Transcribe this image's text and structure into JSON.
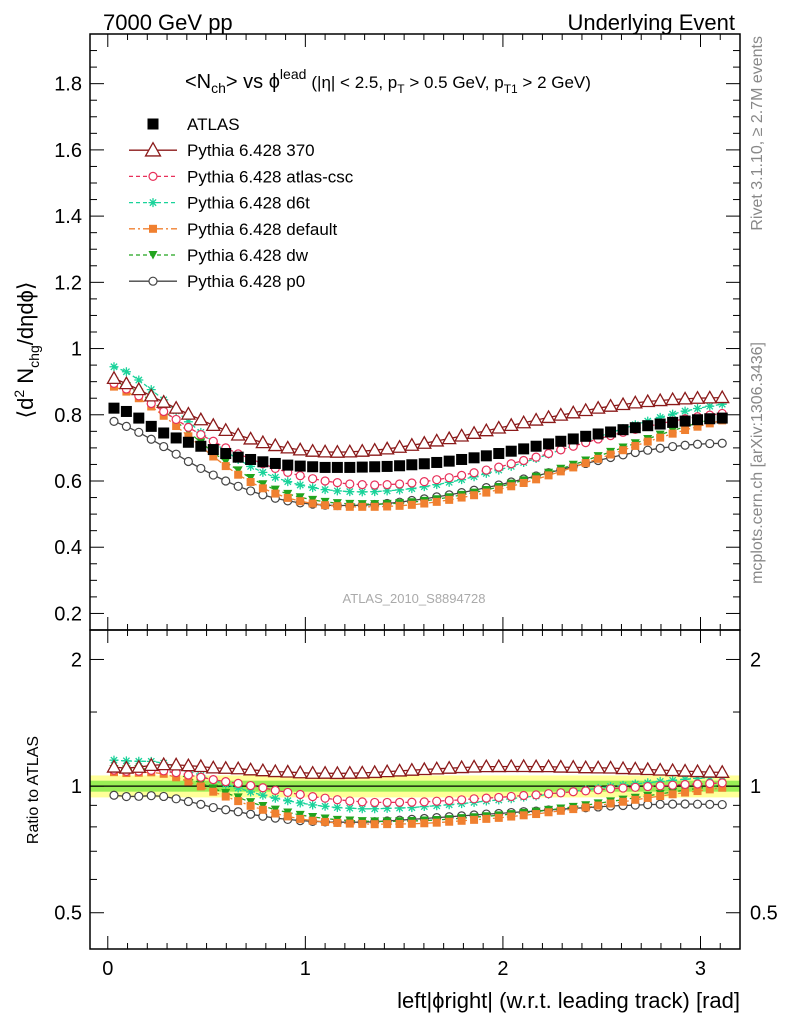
{
  "header": {
    "left": "7000 GeV pp",
    "right": "Underlying Event"
  },
  "plot_title": {
    "main": "<N",
    "main_sub": "ch",
    "vs": "> vs ",
    "phi": "ϕ",
    "phi_sup": "lead",
    "cuts_a": "(|η| < 2.5, p",
    "cuts_sub_t": "T",
    "cuts_b": " > 0.5 GeV, p",
    "cuts_sub_t1": "T1",
    "cuts_c": " > 2 GeV)"
  },
  "ylabel_upper": {
    "a": "⟨d",
    "sup2": "2",
    "b": " N",
    "sub": "chg",
    "c": "/dηdϕ⟩"
  },
  "ylabel_lower": "Ratio to ATLAS",
  "xlabel": "left|ϕright| (w.r.t. leading track) [rad]",
  "watermark": "ATLAS_2010_S8894728",
  "side_text_top": "Rivet 3.1.10, ≥ 2.7M events",
  "side_text_bottom": "mcplots.cern.ch [arXiv:1306.3436]",
  "colors": {
    "atlas": "#000000",
    "p370": "#8b1a1a",
    "atlas_csc": "#e8305a",
    "d6t": "#19d39a",
    "default": "#f08030",
    "dw": "#22a41e",
    "p0": "#444444",
    "band_green": "#99ee55",
    "band_yellow": "#ffff99"
  },
  "chart_data": {
    "type": "scatter",
    "x": [
      0.0314,
      0.0942,
      0.157,
      0.22,
      0.283,
      0.346,
      0.408,
      0.471,
      0.534,
      0.597,
      0.66,
      0.723,
      0.785,
      0.848,
      0.911,
      0.974,
      1.037,
      1.1,
      1.162,
      1.225,
      1.288,
      1.351,
      1.414,
      1.477,
      1.539,
      1.602,
      1.665,
      1.728,
      1.791,
      1.854,
      1.916,
      1.979,
      2.042,
      2.105,
      2.168,
      2.231,
      2.293,
      2.356,
      2.419,
      2.482,
      2.545,
      2.608,
      2.67,
      2.733,
      2.796,
      2.859,
      2.922,
      2.985,
      3.047,
      3.11
    ],
    "xlim": [
      -0.09,
      3.2
    ],
    "xticks": [
      "0",
      "1",
      "2",
      "3"
    ],
    "upper": {
      "ylim": [
        0.15,
        1.95
      ],
      "yticks": [
        "0.2",
        "0.4",
        "0.6",
        "0.8",
        "1",
        "1.2",
        "1.4",
        "1.6",
        "1.8"
      ],
      "series": [
        {
          "name": "ATLAS",
          "key": "atlas",
          "marker": "square",
          "line": "none",
          "values": [
            0.82,
            0.81,
            0.79,
            0.765,
            0.745,
            0.73,
            0.717,
            0.705,
            0.695,
            0.683,
            0.672,
            0.665,
            0.658,
            0.653,
            0.648,
            0.645,
            0.643,
            0.641,
            0.641,
            0.641,
            0.642,
            0.643,
            0.644,
            0.646,
            0.649,
            0.652,
            0.656,
            0.66,
            0.665,
            0.67,
            0.676,
            0.683,
            0.69,
            0.697,
            0.705,
            0.712,
            0.72,
            0.727,
            0.735,
            0.742,
            0.748,
            0.755,
            0.761,
            0.767,
            0.772,
            0.777,
            0.781,
            0.785,
            0.788,
            0.79
          ]
        },
        {
          "name": "Pythia 6.428 370",
          "key": "p370",
          "marker": "triangle",
          "line": "solid",
          "values": [
            0.91,
            0.894,
            0.876,
            0.857,
            0.838,
            0.82,
            0.802,
            0.785,
            0.768,
            0.753,
            0.739,
            0.727,
            0.716,
            0.707,
            0.7,
            0.694,
            0.69,
            0.688,
            0.687,
            0.688,
            0.69,
            0.693,
            0.697,
            0.702,
            0.708,
            0.714,
            0.721,
            0.728,
            0.736,
            0.744,
            0.752,
            0.76,
            0.768,
            0.776,
            0.784,
            0.792,
            0.799,
            0.806,
            0.813,
            0.82,
            0.826,
            0.831,
            0.836,
            0.84,
            0.843,
            0.846,
            0.848,
            0.85,
            0.851,
            0.852
          ]
        },
        {
          "name": "Pythia 6.428 atlas-csc",
          "key": "atlas_csc",
          "marker": "circle-open",
          "line": "dashed",
          "values": [
            0.895,
            0.878,
            0.857,
            0.834,
            0.81,
            0.786,
            0.762,
            0.74,
            0.72,
            0.7,
            0.682,
            0.667,
            0.652,
            0.638,
            0.626,
            0.616,
            0.607,
            0.6,
            0.595,
            0.591,
            0.589,
            0.588,
            0.589,
            0.591,
            0.594,
            0.598,
            0.604,
            0.61,
            0.617,
            0.625,
            0.633,
            0.642,
            0.652,
            0.662,
            0.672,
            0.683,
            0.694,
            0.705,
            0.716,
            0.727,
            0.737,
            0.747,
            0.756,
            0.765,
            0.773,
            0.781,
            0.788,
            0.794,
            0.799,
            0.804
          ]
        },
        {
          "name": "Pythia 6.428 d6t",
          "key": "d6t",
          "marker": "star",
          "line": "dashed",
          "values": [
            0.945,
            0.93,
            0.905,
            0.876,
            0.845,
            0.812,
            0.779,
            0.747,
            0.718,
            0.69,
            0.665,
            0.644,
            0.626,
            0.611,
            0.598,
            0.588,
            0.58,
            0.574,
            0.57,
            0.568,
            0.567,
            0.568,
            0.57,
            0.573,
            0.577,
            0.583,
            0.589,
            0.596,
            0.604,
            0.613,
            0.623,
            0.633,
            0.644,
            0.656,
            0.668,
            0.681,
            0.694,
            0.707,
            0.72,
            0.733,
            0.746,
            0.758,
            0.77,
            0.781,
            0.792,
            0.802,
            0.811,
            0.819,
            0.826,
            0.832
          ]
        },
        {
          "name": "Pythia 6.428 default",
          "key": "default",
          "marker": "square-small",
          "line": "dashdot",
          "values": [
            0.885,
            0.87,
            0.85,
            0.825,
            0.797,
            0.766,
            0.735,
            0.704,
            0.674,
            0.645,
            0.619,
            0.597,
            0.578,
            0.562,
            0.549,
            0.539,
            0.532,
            0.527,
            0.524,
            0.522,
            0.522,
            0.522,
            0.523,
            0.525,
            0.528,
            0.532,
            0.537,
            0.543,
            0.55,
            0.557,
            0.565,
            0.574,
            0.584,
            0.594,
            0.605,
            0.617,
            0.629,
            0.641,
            0.654,
            0.667,
            0.68,
            0.693,
            0.706,
            0.719,
            0.731,
            0.743,
            0.754,
            0.764,
            0.774,
            0.783
          ]
        },
        {
          "name": "Pythia 6.428 dw",
          "key": "dw",
          "marker": "triangle-down",
          "line": "dashed",
          "values": [
            0.9,
            0.887,
            0.867,
            0.842,
            0.813,
            0.781,
            0.749,
            0.717,
            0.686,
            0.658,
            0.632,
            0.609,
            0.59,
            0.574,
            0.561,
            0.551,
            0.543,
            0.537,
            0.533,
            0.531,
            0.53,
            0.53,
            0.531,
            0.533,
            0.536,
            0.54,
            0.545,
            0.551,
            0.558,
            0.565,
            0.573,
            0.582,
            0.592,
            0.602,
            0.613,
            0.625,
            0.637,
            0.649,
            0.662,
            0.675,
            0.688,
            0.701,
            0.714,
            0.727,
            0.74,
            0.752,
            0.764,
            0.775,
            0.785,
            0.795
          ]
        },
        {
          "name": "Pythia 6.428 p0",
          "key": "p0",
          "marker": "circle-open",
          "line": "solid",
          "values": [
            0.78,
            0.765,
            0.747,
            0.726,
            0.704,
            0.681,
            0.659,
            0.638,
            0.618,
            0.6,
            0.584,
            0.57,
            0.558,
            0.548,
            0.54,
            0.534,
            0.53,
            0.527,
            0.526,
            0.526,
            0.527,
            0.529,
            0.532,
            0.536,
            0.541,
            0.546,
            0.552,
            0.558,
            0.565,
            0.572,
            0.58,
            0.588,
            0.597,
            0.606,
            0.615,
            0.625,
            0.634,
            0.644,
            0.653,
            0.662,
            0.671,
            0.679,
            0.686,
            0.693,
            0.699,
            0.704,
            0.708,
            0.711,
            0.713,
            0.714
          ]
        }
      ]
    },
    "lower": {
      "ylim": [
        0.41,
        2.35
      ],
      "scale": "log",
      "yticks": [
        "0.5",
        "1",
        "2"
      ],
      "band": {
        "green": [
          0.97,
          1.03
        ],
        "yellow": [
          0.94,
          1.06
        ]
      }
    },
    "legend_position": "top-left"
  }
}
